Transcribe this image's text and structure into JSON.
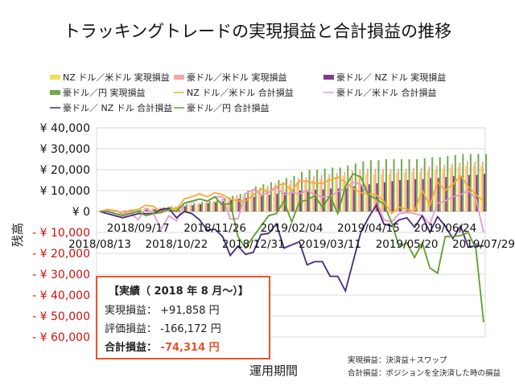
{
  "chart_data": {
    "type": "bar",
    "title": "トラッキングトレードの実現損益と合計損益の推移",
    "ylabel": "残高",
    "xlabel": "運用期間",
    "ylim": [
      -60000,
      40000
    ],
    "yticks": [
      40000,
      30000,
      20000,
      10000,
      0,
      -10000,
      -20000,
      -30000,
      -40000,
      -50000,
      -60000
    ],
    "ytick_labels": [
      "¥ 40,000",
      "¥ 30,000",
      "¥ 20,000",
      "¥ 10,000",
      "¥ 0",
      "- ¥ 10,000",
      "- ¥ 20,000",
      "- ¥ 30,000",
      "- ¥ 40,000",
      "- ¥ 50,000",
      "- ¥ 60,000"
    ],
    "negative_label_color": "#d01010",
    "grid": true,
    "legend_position": "top",
    "x_start": "2018/08/13",
    "x_interval": "weekly",
    "xtick_labels": [
      "2018/08/13",
      "2018/09/17",
      "2018/10/22",
      "2018/11/26",
      "2018/12/31",
      "2019/02/04",
      "2019/03/11",
      "2019/04/15",
      "2019/05/20",
      "2019/06/24",
      "2019/07/29"
    ],
    "series": [
      {
        "name": "NZ ドル／米ドル 実現損益",
        "kind": "bar",
        "color": "#f7dc5c",
        "values": [
          0,
          0,
          300,
          300,
          800,
          800,
          1000,
          1200,
          1500,
          1800,
          2000,
          2500,
          3000,
          3500,
          4000,
          4500,
          5000,
          6000,
          7000,
          8000,
          9000,
          10000,
          11000,
          12000,
          12500,
          13000,
          14000,
          14500,
          15000,
          15500,
          16000,
          16500,
          17000,
          17000,
          17500,
          18000,
          18000,
          18000,
          18000,
          18500,
          18500,
          19000,
          19000,
          19500,
          20000,
          20500,
          21000,
          21500,
          22000,
          22000,
          22000
        ]
      },
      {
        "name": "豪ドル／米ドル 実現損益",
        "kind": "bar",
        "color": "#f5a9a9",
        "values": [
          0,
          0,
          500,
          500,
          1000,
          1000,
          1500,
          1500,
          2000,
          2000,
          2500,
          3000,
          3500,
          4000,
          4500,
          5000,
          6000,
          7000,
          8000,
          9000,
          10500,
          11500,
          12500,
          13500,
          14000,
          15000,
          16000,
          16500,
          17000,
          17500,
          18000,
          18500,
          19000,
          19500,
          20000,
          20500,
          20500,
          20500,
          20500,
          20500,
          20500,
          21000,
          21000,
          21500,
          22000,
          22500,
          23000,
          23500,
          24000,
          24000,
          24000
        ]
      },
      {
        "name": "豪ドル／ NZ ドル 実現損益",
        "kind": "bar",
        "color": "#7d3c8f",
        "values": [
          0,
          0,
          200,
          200,
          500,
          500,
          800,
          1000,
          1200,
          1500,
          2000,
          2500,
          3000,
          3500,
          4000,
          4500,
          5000,
          5500,
          6000,
          6500,
          7000,
          7500,
          8000,
          8500,
          9000,
          9500,
          10000,
          10000,
          10500,
          10500,
          11000,
          11000,
          11500,
          12000,
          12500,
          13000,
          13500,
          14000,
          14500,
          15000,
          15000,
          15500,
          15500,
          16000,
          16000,
          16500,
          17000,
          17000,
          17500,
          17500,
          18000
        ]
      },
      {
        "name": "豪ドル／円 実現損益",
        "kind": "bar",
        "color": "#6fac4a",
        "values": [
          0,
          0,
          500,
          500,
          1000,
          1000,
          1500,
          1500,
          2000,
          2500,
          3000,
          3500,
          4000,
          4500,
          5000,
          5500,
          6500,
          7500,
          8500,
          10000,
          12000,
          13000,
          14000,
          15000,
          16000,
          17000,
          19000,
          20000,
          20000,
          20500,
          21000,
          21000,
          22000,
          23000,
          24000,
          24500,
          24500,
          25000,
          25000,
          25000,
          25000,
          25000,
          25500,
          26000,
          26000,
          26500,
          27000,
          27500,
          27500,
          27500,
          27500
        ]
      },
      {
        "name": "NZ ドル／米ドル 合計損益",
        "kind": "line",
        "color": "#f9a838",
        "values": [
          0,
          1000,
          500,
          -1000,
          500,
          1000,
          3000,
          2500,
          -500,
          2000,
          1000,
          6000,
          7000,
          8500,
          7000,
          9000,
          8000,
          6000,
          5000,
          5000,
          8000,
          11000,
          9000,
          12000,
          13500,
          10000,
          14500,
          14500,
          13500,
          13500,
          15000,
          16500,
          14000,
          11000,
          9000,
          8500,
          8000,
          5000,
          -1000,
          2000,
          1000,
          0,
          10000,
          3000,
          14000,
          10000,
          13000,
          17000,
          12000,
          8000,
          5000
        ]
      },
      {
        "name": "豪ドル／米ドル 合計損益",
        "kind": "line",
        "color": "#e79bc8",
        "values": [
          0,
          500,
          -1000,
          -1500,
          -500,
          -4000,
          1500,
          -1000,
          -8500,
          -2000,
          -4500,
          4000,
          4500,
          6000,
          5000,
          7000,
          7000,
          -3500,
          -3500,
          8500,
          10500,
          8000,
          9000,
          11500,
          8000,
          9000,
          8500,
          10000,
          8000,
          7000,
          7000,
          9500,
          11000,
          14000,
          13000,
          8000,
          6000,
          -4000,
          -5000,
          -1000,
          -500,
          -1000,
          -2000,
          -6000,
          4000,
          5000,
          7000,
          8000,
          10000,
          6000,
          -10000
        ]
      },
      {
        "name": "豪ドル／ NZ ドル 合計損益",
        "kind": "line",
        "color": "#472a7c",
        "values": [
          0,
          -1000,
          -2000,
          -3000,
          -2000,
          -1000,
          -1000,
          -1000,
          1000,
          1500,
          -3000,
          0,
          -1000,
          -4000,
          -9000,
          -8500,
          -12000,
          -21000,
          -16500,
          -20500,
          -19500,
          -11000,
          -10500,
          -6000,
          -17500,
          -16000,
          -14500,
          -25500,
          -24000,
          -24000,
          -31000,
          -31000,
          -38000,
          -24000,
          -10000,
          -3000,
          3000,
          -6000,
          -7000,
          -4000,
          -3000,
          -7500,
          -2000,
          -10000,
          -2500,
          -7000,
          -13000,
          -7000,
          -17000,
          -16500,
          -16500
        ]
      },
      {
        "name": "豪ドル／円 合計損益",
        "kind": "line",
        "color": "#5e9e2c",
        "values": [
          0,
          0,
          -1000,
          -2000,
          -1000,
          0,
          -2000,
          -1000,
          -500,
          1000,
          0,
          4000,
          5000,
          6000,
          5000,
          7000,
          3000,
          4000,
          -12000,
          -17500,
          -12000,
          -7000,
          -2000,
          -1000,
          5000,
          -5000,
          4500,
          5500,
          7500,
          2000,
          7500,
          -1000,
          12000,
          18000,
          16500,
          8000,
          6000,
          3500,
          -5000,
          -17000,
          -15000,
          -22000,
          -15000,
          -27000,
          -29500,
          -12000,
          -12000,
          -11500,
          -10000,
          -18000,
          -53000
        ]
      }
    ]
  },
  "summary": {
    "heading": "【実績（ 2018 年 8 月～）】",
    "realized_label": "実現損益：",
    "realized_value": "+91,858 円",
    "unrealized_label": "評価損益：",
    "unrealized_value": "-166,172 円",
    "total_label": "合計損益：",
    "total_value": "-74,314 円",
    "total_color": "#e8532a",
    "border_color": "#e8532a"
  },
  "notes": [
    "実現損益：決済益＋スワップ",
    "合計損益：ポジションを全決済した時の損益"
  ]
}
